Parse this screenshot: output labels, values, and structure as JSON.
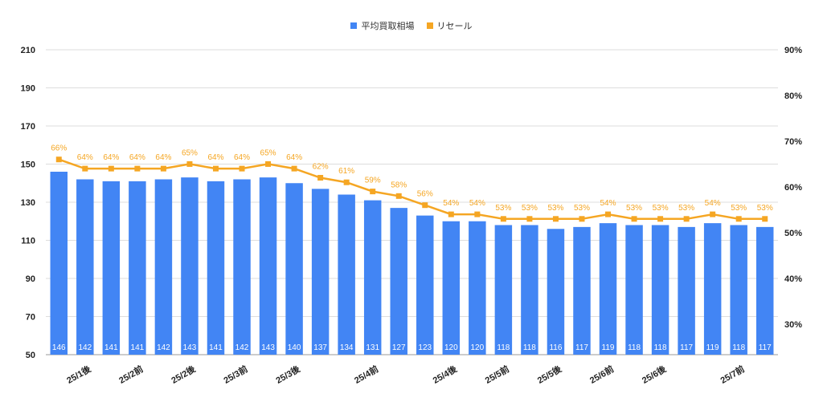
{
  "chart_data": {
    "type": "bar+line",
    "legend": [
      {
        "name": "平均買取相場",
        "color": "#4285f4",
        "marker": "square"
      },
      {
        "name": "リセール",
        "color": "#f5a623",
        "marker": "line-square"
      }
    ],
    "left_axis": {
      "min": 50,
      "max": 210,
      "ticks": [
        "50",
        "70",
        "90",
        "110",
        "130",
        "150",
        "170",
        "190",
        "210"
      ]
    },
    "right_axis": {
      "min": 23.3,
      "max": 90,
      "ticks": [
        "30%",
        "40%",
        "50%",
        "60%",
        "70%",
        "80%",
        "90%"
      ],
      "tick_values": [
        30,
        40,
        50,
        60,
        70,
        80,
        90
      ]
    },
    "bars": {
      "name": "平均買取相場",
      "values": [
        146,
        142,
        141,
        141,
        142,
        143,
        141,
        142,
        143,
        140,
        137,
        134,
        131,
        127,
        123,
        120,
        120,
        118,
        118,
        116,
        117,
        119,
        118,
        118,
        117,
        119,
        118,
        117
      ],
      "labels": [
        "146",
        "142",
        "141",
        "141",
        "142",
        "143",
        "141",
        "142",
        "143",
        "140",
        "137",
        "134",
        "131",
        "127",
        "123",
        "120",
        "120",
        "118",
        "118",
        "116",
        "117",
        "119",
        "118",
        "118",
        "117",
        "119",
        "118",
        "117"
      ]
    },
    "line": {
      "name": "リセール",
      "values": [
        66,
        64,
        64,
        64,
        64,
        65,
        64,
        64,
        65,
        64,
        62,
        61,
        59,
        58,
        56,
        54,
        54,
        53,
        53,
        53,
        53,
        54,
        53,
        53,
        53,
        54,
        53,
        53
      ],
      "labels": [
        "66%",
        "64%",
        "64%",
        "64%",
        "64%",
        "65%",
        "64%",
        "64%",
        "65%",
        "64%",
        "62%",
        "61%",
        "59%",
        "58%",
        "56%",
        "54%",
        "54%",
        "53%",
        "53%",
        "53%",
        "53%",
        "54%",
        "53%",
        "53%",
        "53%",
        "54%",
        "53%",
        "53%"
      ]
    },
    "x_labels": [
      {
        "index": 1,
        "text": "25/1後"
      },
      {
        "index": 3,
        "text": "25/2前"
      },
      {
        "index": 5,
        "text": "25/2後"
      },
      {
        "index": 7,
        "text": "25/3前"
      },
      {
        "index": 9,
        "text": "25/3後"
      },
      {
        "index": 12,
        "text": "25/4前"
      },
      {
        "index": 15,
        "text": "25/4後"
      },
      {
        "index": 17,
        "text": "25/5前"
      },
      {
        "index": 19,
        "text": "25/5後"
      },
      {
        "index": 21,
        "text": "25/6前"
      },
      {
        "index": 23,
        "text": "25/6後"
      },
      {
        "index": 26,
        "text": "25/7前"
      }
    ]
  }
}
